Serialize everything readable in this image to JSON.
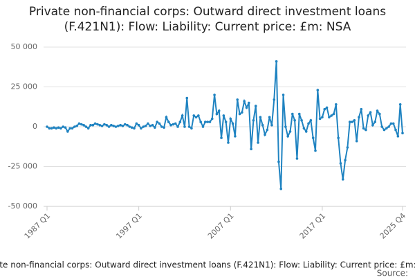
{
  "chart_data": {
    "type": "line",
    "title": "Private non-financial corps: Outward direct investment loans (F.421N1): Flow: Liability: Current price: £m: NSA",
    "source": "Source:",
    "categories": [
      "1987 Q1",
      null,
      null,
      null,
      null,
      null,
      null,
      null,
      null,
      null,
      null,
      null,
      null,
      null,
      null,
      null,
      null,
      null,
      null,
      null,
      null,
      null,
      null,
      null,
      null,
      null,
      null,
      null,
      null,
      null,
      null,
      null,
      null,
      null,
      null,
      null,
      null,
      null,
      null,
      null,
      "1997 Q1",
      null,
      null,
      null,
      null,
      null,
      null,
      null,
      null,
      null,
      null,
      null,
      null,
      null,
      null,
      null,
      null,
      null,
      null,
      null,
      null,
      null,
      null,
      null,
      null,
      null,
      null,
      null,
      null,
      null,
      null,
      null,
      null,
      null,
      null,
      null,
      null,
      null,
      null,
      null,
      "2007 Q1",
      null,
      null,
      null,
      null,
      null,
      null,
      null,
      null,
      null,
      null,
      null,
      null,
      null,
      null,
      null,
      null,
      null,
      null,
      null,
      null,
      null,
      null,
      null,
      null,
      null,
      null,
      null,
      null,
      null,
      null,
      null,
      null,
      null,
      null,
      null,
      null,
      null,
      null,
      null,
      "2017 Q1",
      null,
      null,
      null,
      null,
      null,
      null,
      null,
      null,
      null,
      null,
      null,
      null,
      null,
      null,
      null,
      null,
      null,
      null,
      null,
      null,
      null,
      null,
      null,
      null,
      null,
      null,
      null,
      null,
      null,
      null,
      null,
      null,
      null,
      null,
      "2025 Q4"
    ],
    "series": [
      {
        "name": "Private non-financial corps: Outward direct investment loans (F.421N1): Flow: Liability: Current price: £m: NSA",
        "color": "#1f83c1",
        "values": [
          0,
          -1000,
          -1000,
          -500,
          -1000,
          -500,
          -1000,
          0,
          -500,
          -3000,
          -1000,
          -1000,
          0,
          500,
          2000,
          1500,
          1000,
          0,
          -1000,
          1000,
          1000,
          2000,
          1500,
          1000,
          500,
          1500,
          1000,
          0,
          1000,
          500,
          0,
          500,
          1000,
          500,
          1500,
          1000,
          0,
          -500,
          -1000,
          2000,
          1000,
          -1000,
          0,
          500,
          2000,
          500,
          1000,
          -500,
          3000,
          2000,
          0,
          -500,
          6000,
          3000,
          1000,
          1500,
          2000,
          0,
          3000,
          7000,
          0,
          18000,
          0,
          -1000,
          7000,
          6000,
          7000,
          3000,
          0,
          3000,
          3000,
          3000,
          5000,
          20000,
          8000,
          10000,
          -7000,
          7000,
          3000,
          -10000,
          5000,
          2000,
          -6000,
          17000,
          8000,
          9000,
          16000,
          12000,
          15000,
          -14000,
          4000,
          13000,
          -10000,
          6000,
          1000,
          -5000,
          -2000,
          6000,
          1000,
          17000,
          41000,
          -22000,
          -39000,
          20000,
          0,
          -6000,
          -3000,
          8000,
          4000,
          -20000,
          8000,
          4000,
          -1000,
          -3000,
          2000,
          4000,
          -7000,
          -15000,
          23000,
          5000,
          6000,
          11000,
          12000,
          6000,
          7000,
          8000,
          14000,
          -7000,
          -23000,
          -33000,
          -21000,
          -13000,
          3000,
          3000,
          4000,
          -9000,
          6000,
          11000,
          -1000,
          -2000,
          7000,
          9000,
          1000,
          3000,
          10000,
          8000,
          0,
          -2000,
          -1000,
          0,
          2000,
          2000,
          -2000,
          -6000,
          14000,
          -4000
        ]
      }
    ],
    "ylim": [
      -50000,
      50000
    ],
    "yticks": [
      {
        "value": -50000,
        "label": "-50 000"
      },
      {
        "value": -25000,
        "label": "-25 000"
      },
      0,
      {
        "value": 25000,
        "label": "25 000"
      },
      {
        "value": 50000,
        "label": "50 000"
      }
    ],
    "grid": true
  }
}
